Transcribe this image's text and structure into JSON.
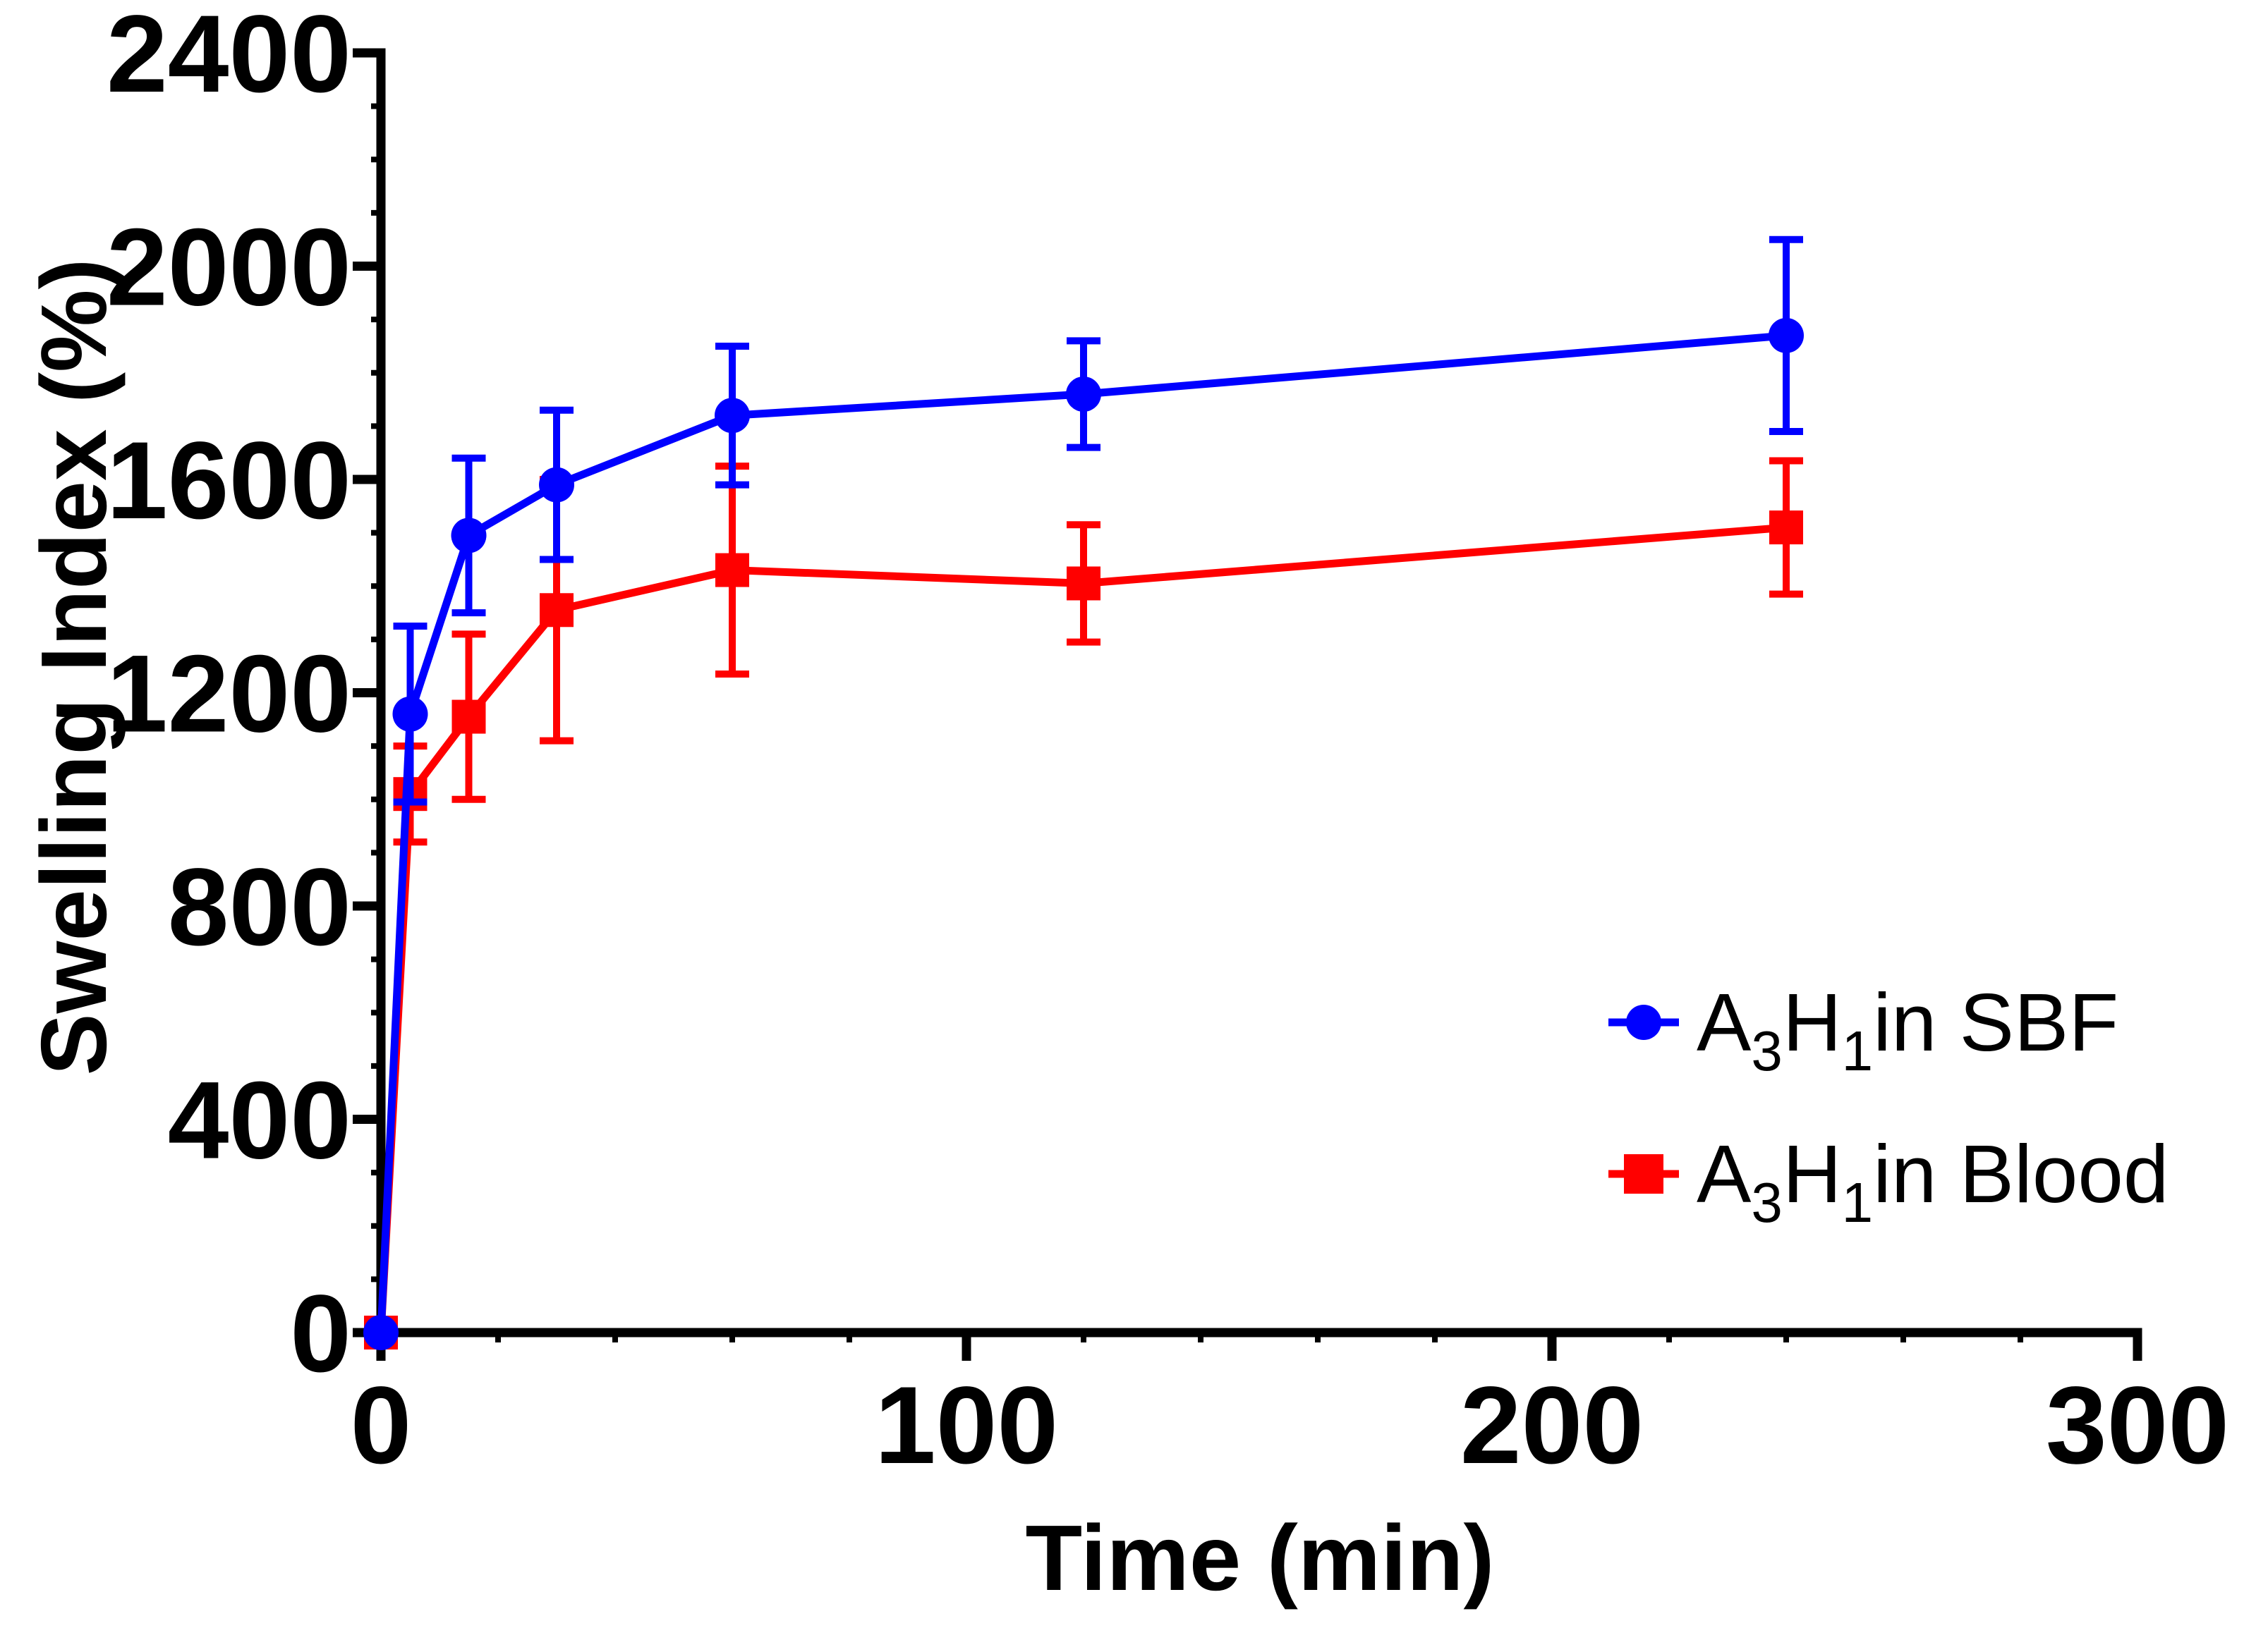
{
  "chart_data": {
    "type": "line",
    "title": "",
    "xlabel": "Time (min)",
    "ylabel": "Swelling Index (%)",
    "xlim": [
      0,
      300
    ],
    "ylim": [
      0,
      2400
    ],
    "xticks": [
      0,
      100,
      200,
      300
    ],
    "yticks": [
      0,
      400,
      800,
      1200,
      1600,
      2000,
      2400
    ],
    "x_tick_labels": [
      "0",
      "100",
      "200",
      "300"
    ],
    "y_tick_labels": [
      "0",
      "400",
      "800",
      "1200",
      "1600",
      "2000",
      "2400"
    ],
    "x_minor_step": 20,
    "y_minor_step": 100,
    "grid": false,
    "legend_position": "bottom-right",
    "series": [
      {
        "name": "A3H1in SBF",
        "label_parts": [
          "A",
          "3",
          "H",
          "1",
          "in SBF"
        ],
        "color": "#0000ff",
        "marker": "circle",
        "x": [
          0,
          5,
          15,
          30,
          60,
          120,
          240
        ],
        "y": [
          0,
          1160,
          1495,
          1590,
          1720,
          1760,
          1870
        ],
        "err": [
          0,
          165,
          145,
          140,
          130,
          100,
          180
        ]
      },
      {
        "name": "A3H1in Blood",
        "label_parts": [
          "A",
          "3",
          "H",
          "1",
          "in Blood"
        ],
        "color": "#ff0000",
        "marker": "square",
        "x": [
          0,
          5,
          15,
          30,
          60,
          120,
          240
        ],
        "y": [
          0,
          1010,
          1155,
          1355,
          1430,
          1405,
          1510
        ],
        "err": [
          0,
          90,
          155,
          245,
          195,
          110,
          125
        ]
      }
    ]
  }
}
